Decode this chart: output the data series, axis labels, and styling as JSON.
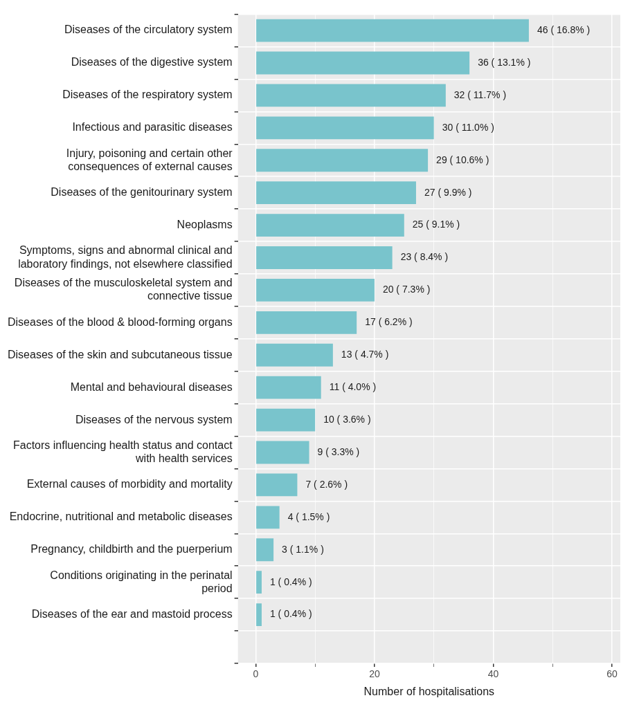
{
  "chart_data": {
    "type": "bar",
    "orientation": "horizontal",
    "xlabel": "Number of hospitalisations",
    "categories": [
      "Diseases of the circulatory system",
      "Diseases of the digestive system",
      "Diseases of the respiratory system",
      "Infectious and parasitic diseases",
      "Injury, poisoning and certain other consequences of external causes",
      "Diseases of the genitourinary system",
      "Neoplasms",
      "Symptoms, signs and abnormal clinical and laboratory findings, not elsewhere classified",
      "Diseases of the musculoskeletal system and connective tissue",
      "Diseases of the blood & blood-forming organs",
      "Diseases of the skin and subcutaneous tissue",
      "Mental and behavioural diseases",
      "Diseases of the nervous system",
      "Factors influencing health status and contact with health services",
      "External causes of morbidity and mortality",
      "Endocrine, nutritional and metabolic diseases",
      "Pregnancy, childbirth and the puerperium",
      "Conditions originating in the perinatal period",
      "Diseases of the ear and mastoid process",
      null
    ],
    "values": [
      46,
      36,
      32,
      30,
      29,
      27,
      25,
      23,
      20,
      17,
      13,
      11,
      10,
      9,
      7,
      4,
      3,
      1,
      1,
      null
    ],
    "value_labels": [
      "46 ( 16.8% )",
      "36 ( 13.1% )",
      "32 ( 11.7% )",
      "30 ( 11.0% )",
      "29 ( 10.6% )",
      "27 ( 9.9% )",
      "25 ( 9.1% )",
      "23 ( 8.4% )",
      "20 ( 7.3% )",
      "17 ( 6.2% )",
      "13 ( 4.7% )",
      "11 ( 4.0% )",
      "10 ( 3.6% )",
      "9 ( 3.3% )",
      "7 ( 2.6% )",
      "4 ( 1.5% )",
      "3 ( 1.1% )",
      "1 ( 0.4% )",
      "1 ( 0.4% )",
      null
    ],
    "color": "#79c4cc",
    "xlim": [
      -3,
      61.4
    ],
    "xticks": [
      0,
      {
        "value": 10,
        "label": null
      },
      20,
      {
        "value": 30,
        "label": null
      },
      40,
      {
        "value": 50,
        "label": null
      },
      60
    ],
    "grid": true,
    "legend": false
  }
}
